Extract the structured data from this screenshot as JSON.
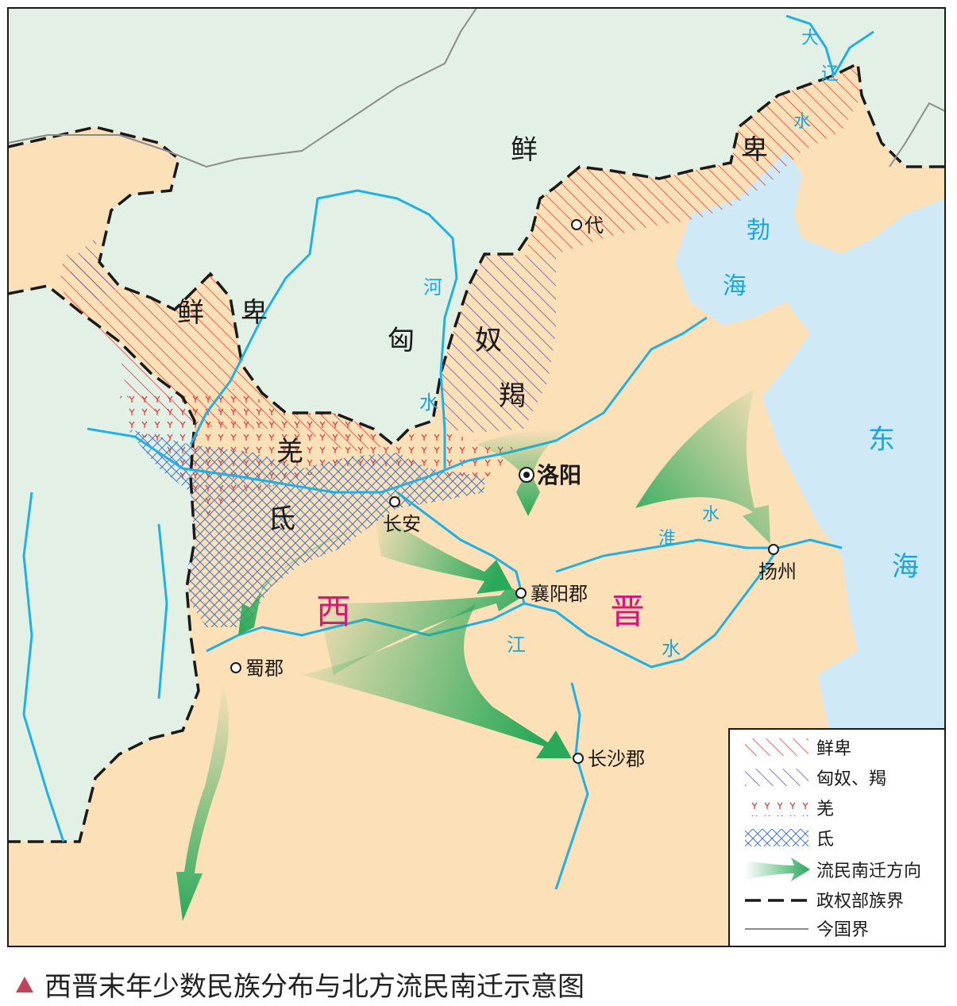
{
  "caption": "西晋末年少数民族分布与北方流民南迁示意图",
  "colors": {
    "land_jin": "#fbe0b8",
    "land_north": "#e3f0e5",
    "sea": "#cfe9f7",
    "river": "#1fb1e6",
    "river_label": "#1aa6dc",
    "xianbei_hatch": "#e53b3b",
    "xiongnu_hatch": "#6a55b0",
    "qiang_mark": "#e53b3b",
    "di_hatch": "#4d79c4",
    "arrow": "#2aa95a",
    "jin_label": "#d6197d",
    "border": "#1a1a1a",
    "modern_border": "#8c8c8c"
  },
  "regions": {
    "xianbei_north": "鲜",
    "xianbei_ne_char": "卑",
    "xianbei_west_1": "鲜",
    "xianbei_west_2": "卑",
    "xiongnu_1": "匈",
    "xiongnu_2": "奴",
    "jie": "羯",
    "qiang": "羌",
    "di": "氐",
    "jin_1": "西",
    "jin_2": "晋"
  },
  "waters": {
    "he_1": "河",
    "he_2": "水",
    "daliao_1": "大",
    "daliao_2": "辽",
    "daliao_3": "水",
    "bohai_1": "勃",
    "bohai_2": "海",
    "dong_1": "东",
    "dong_2": "海",
    "huai_1": "淮",
    "huai_2": "水",
    "jiang_1": "江",
    "jiang_2": "水"
  },
  "cities": {
    "luoyang": "洛阳",
    "changan": "长安",
    "dai": "代",
    "xiangyang": "襄阳郡",
    "shu": "蜀郡",
    "changsha": "长沙郡",
    "yangzhou": "扬州"
  },
  "legend": [
    {
      "key": "xianbei",
      "label": "鲜卑"
    },
    {
      "key": "xiongnu",
      "label": "匈奴、羯"
    },
    {
      "key": "qiang",
      "label": "羌"
    },
    {
      "key": "di",
      "label": "氐"
    },
    {
      "key": "migration",
      "label": "流民南迁方向"
    },
    {
      "key": "boundary",
      "label": "政权部族界"
    },
    {
      "key": "modern",
      "label": "今国界"
    }
  ]
}
